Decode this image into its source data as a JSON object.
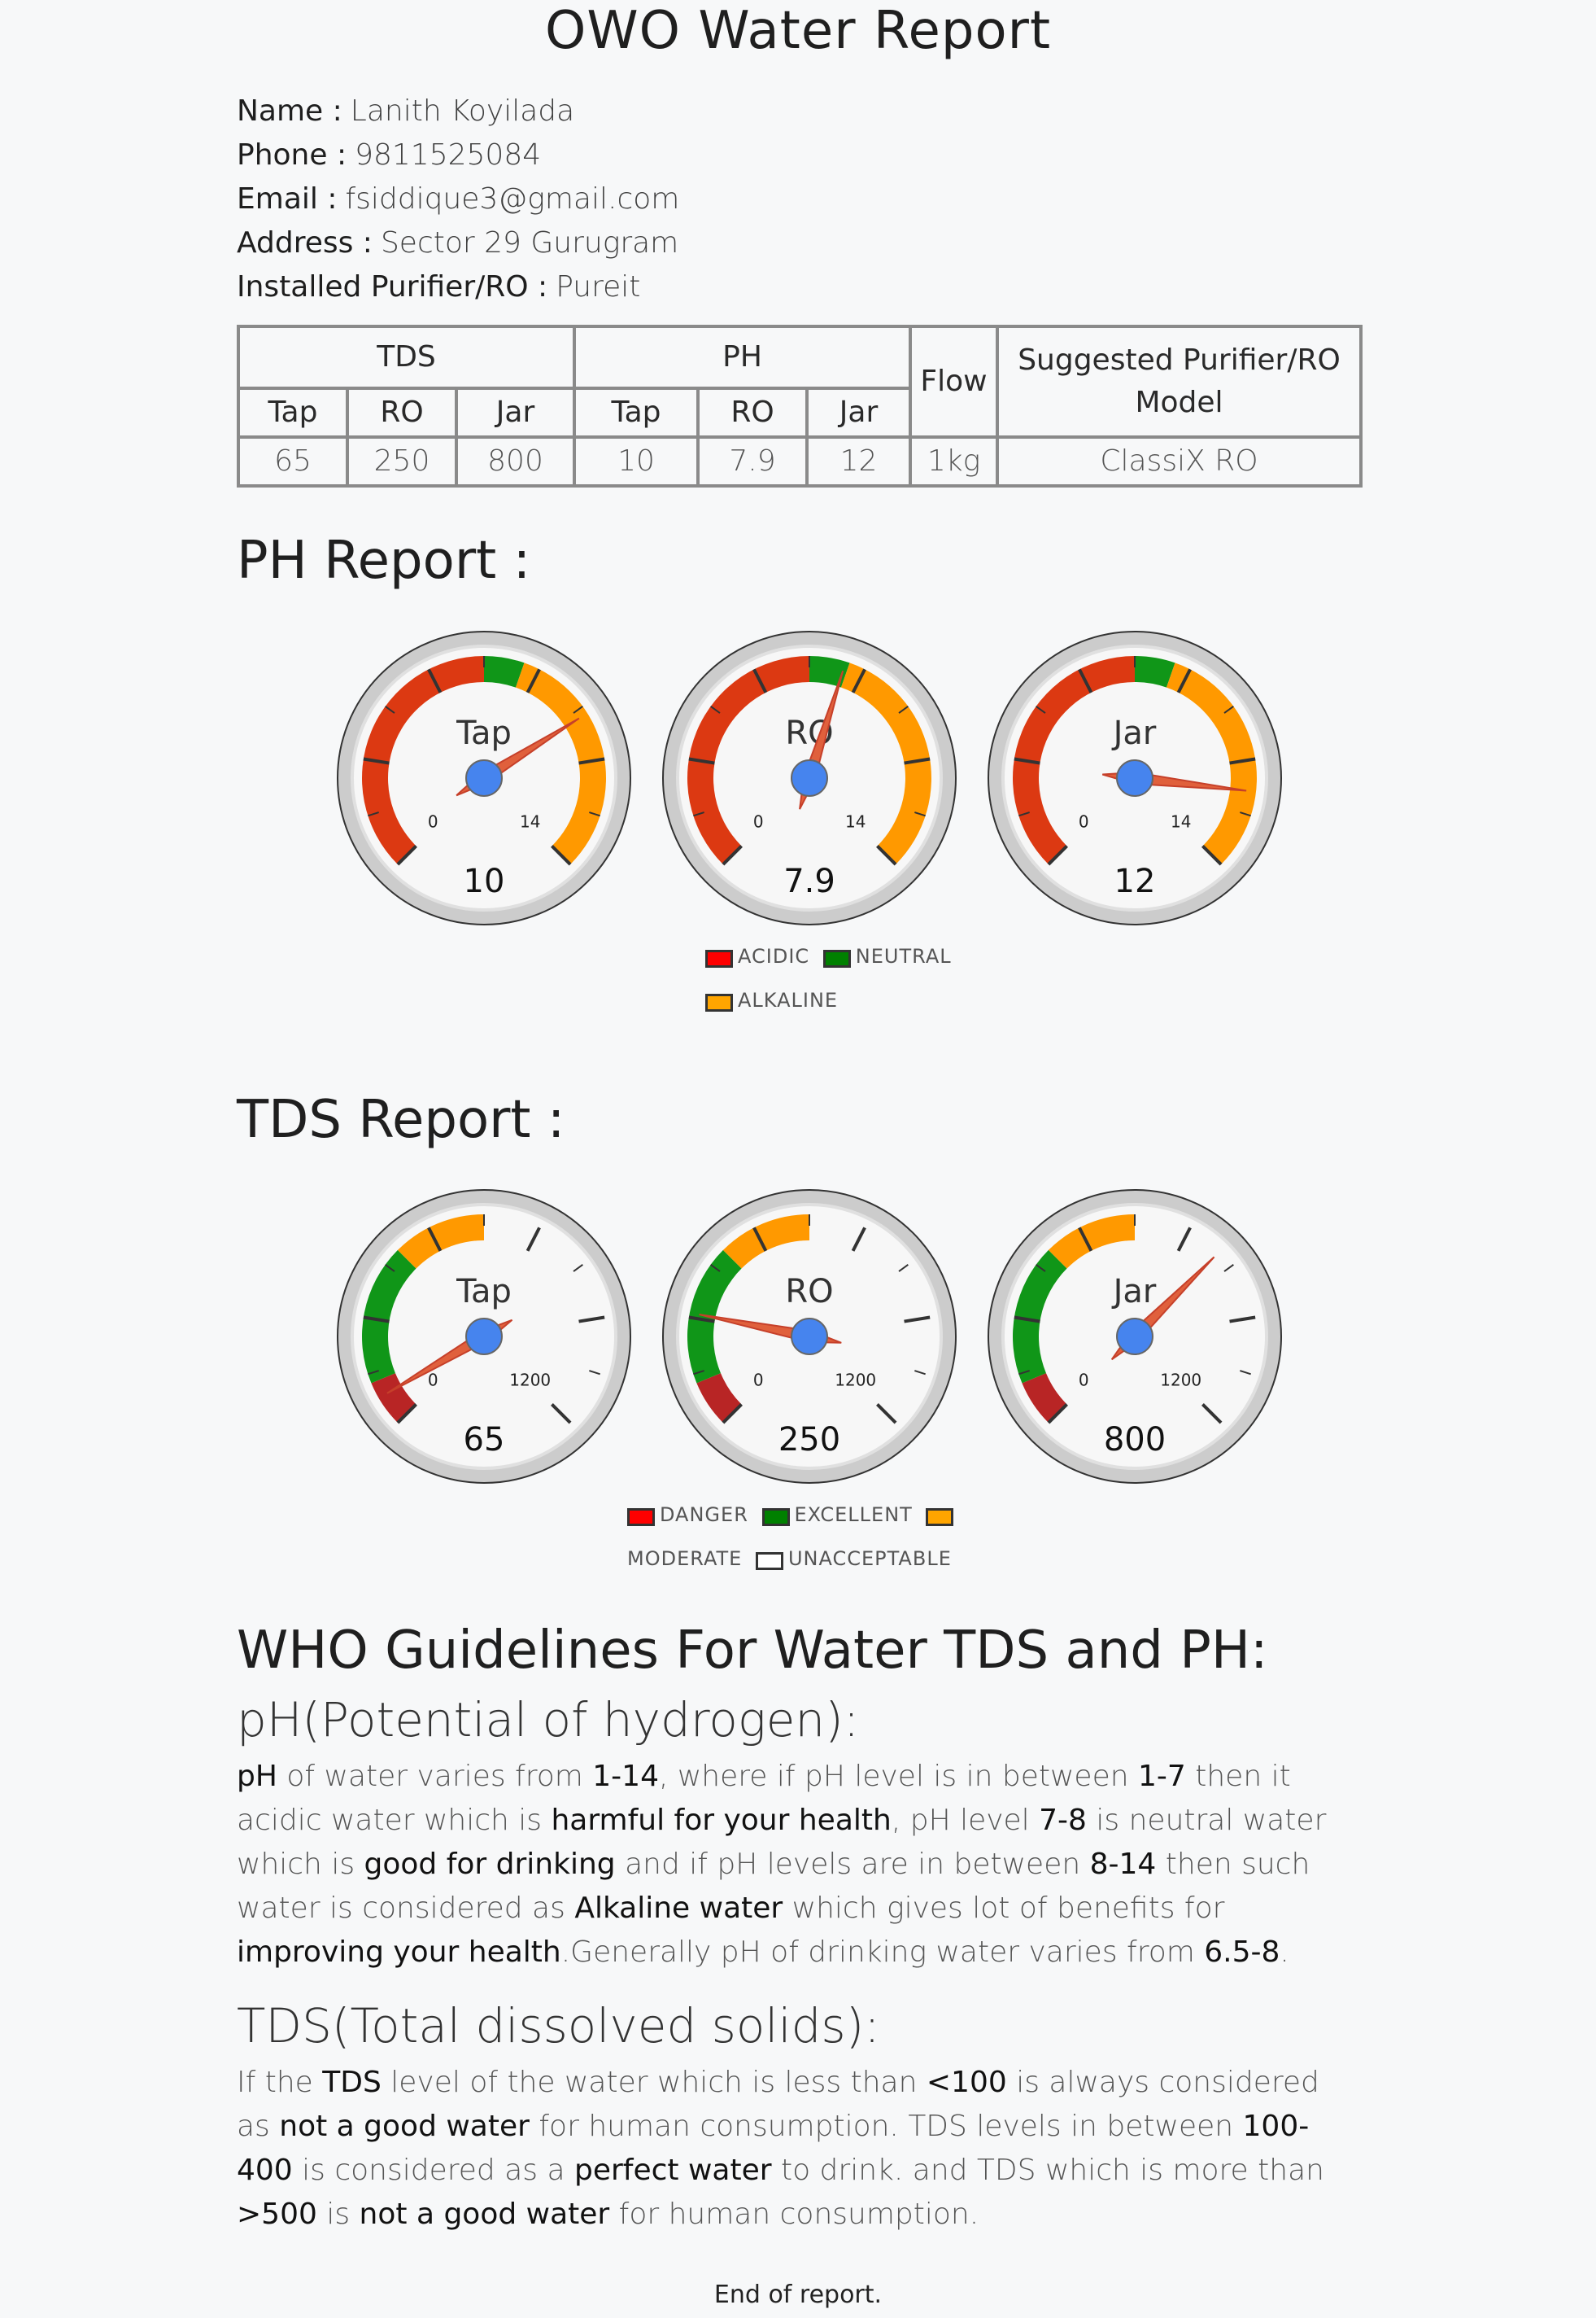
{
  "title": "OWO Water Report",
  "customer": [
    {
      "label": "Name :",
      "value": "Lanith Koyilada"
    },
    {
      "label": "Phone :",
      "value": "9811525084"
    },
    {
      "label": "Email :",
      "value": "fsiddique3@gmail.com"
    },
    {
      "label": "Address :",
      "value": "Sector 29 Gurugram"
    },
    {
      "label": "Installed Purifier/RO :",
      "value": "Pureit"
    }
  ],
  "summary_table": {
    "groups": {
      "tds": "TDS",
      "ph": "PH",
      "flow": "Flow",
      "model": "Suggested Purifier/RO Model"
    },
    "sub": [
      "Tap",
      "RO",
      "Jar",
      "Tap",
      "RO",
      "Jar"
    ],
    "values": {
      "tds_tap": "65",
      "tds_ro": "250",
      "tds_jar": "800",
      "ph_tap": "10",
      "ph_ro": "7.9",
      "ph_jar": "12",
      "flow": "1kg",
      "model": "ClassiX RO"
    }
  },
  "ph_report": {
    "heading": "PH Report :",
    "min_label": "0",
    "max_label": "14",
    "range": [
      0,
      14
    ],
    "gauges": [
      {
        "label": "Tap",
        "value": 10,
        "display": "10"
      },
      {
        "label": "RO",
        "value": 7.9,
        "display": "7.9"
      },
      {
        "label": "Jar",
        "value": 12,
        "display": "12"
      }
    ],
    "bands": [
      {
        "name": "acidic",
        "from": 0,
        "to": 7,
        "color": "#dc3912"
      },
      {
        "name": "neutral",
        "from": 7,
        "to": 8,
        "color": "#109618"
      },
      {
        "name": "alkaline",
        "from": 8,
        "to": 14,
        "color": "#ff9900"
      }
    ],
    "legend": [
      {
        "label": "ACIDIC",
        "color": "#ff0000"
      },
      {
        "label": "NEUTRAL",
        "color": "#008000"
      },
      {
        "label": "ALKALINE",
        "color": "#ffa500"
      }
    ]
  },
  "tds_report": {
    "heading": "TDS Report :",
    "min_label": "0",
    "max_label": "1200",
    "range": [
      0,
      1200
    ],
    "gauges": [
      {
        "label": "Tap",
        "value": 65,
        "display": "65"
      },
      {
        "label": "RO",
        "value": 250,
        "display": "250"
      },
      {
        "label": "Jar",
        "value": 800,
        "display": "800"
      }
    ],
    "bands": [
      {
        "name": "danger",
        "from": 0,
        "to": 100,
        "color": "#b82525"
      },
      {
        "name": "excellent",
        "from": 100,
        "to": 400,
        "color": "#109618"
      },
      {
        "name": "moderate",
        "from": 400,
        "to": 600,
        "color": "#ff9900"
      }
    ],
    "legend": [
      {
        "label": "DANGER",
        "color": "#ff0000"
      },
      {
        "label": "EXCELLENT",
        "color": "#008000"
      },
      {
        "label": "MODERATE",
        "color": "#ffa500"
      },
      {
        "label": "UNACCEPTABLE",
        "color": "#ffffff"
      }
    ]
  },
  "who": {
    "heading": "WHO Guidelines For Water TDS and PH:",
    "ph_heading": "pH(Potential of hydrogen):",
    "ph_text": [
      {
        "t": "pH",
        "b": true
      },
      {
        "t": " of water varies from "
      },
      {
        "t": "1-14",
        "b": true
      },
      {
        "t": ", where if pH level is in between "
      },
      {
        "t": "1-7",
        "b": true
      },
      {
        "t": " then it acidic water which is "
      },
      {
        "t": "harmful for your health",
        "b": true
      },
      {
        "t": ", pH level "
      },
      {
        "t": "7-8",
        "b": true
      },
      {
        "t": " is neutral water which is "
      },
      {
        "t": "good for drinking",
        "b": true
      },
      {
        "t": " and if pH levels are in between "
      },
      {
        "t": "8-14",
        "b": true
      },
      {
        "t": " then such water is considered as "
      },
      {
        "t": "Alkaline water",
        "b": true
      },
      {
        "t": " which gives lot of benefits for "
      },
      {
        "t": "improving your health",
        "b": true
      },
      {
        "t": ".Generally pH of drinking water varies from "
      },
      {
        "t": "6.5-8",
        "b": true
      },
      {
        "t": "."
      }
    ],
    "tds_heading": "TDS(Total dissolved solids):",
    "tds_text": [
      {
        "t": "If the "
      },
      {
        "t": "TDS",
        "b": true
      },
      {
        "t": " level of the water which is less than "
      },
      {
        "t": "<100",
        "b": true
      },
      {
        "t": " is always considered as "
      },
      {
        "t": "not a good water",
        "b": true
      },
      {
        "t": " for human consumption. TDS levels in between "
      },
      {
        "t": "100-400",
        "b": true
      },
      {
        "t": " is considered as a "
      },
      {
        "t": "perfect water",
        "b": true
      },
      {
        "t": " to drink. and TDS which is more than "
      },
      {
        "t": ">500",
        "b": true
      },
      {
        "t": " is "
      },
      {
        "t": "not a good water",
        "b": true
      },
      {
        "t": " for human consumption."
      }
    ]
  },
  "footer": "End of report."
}
